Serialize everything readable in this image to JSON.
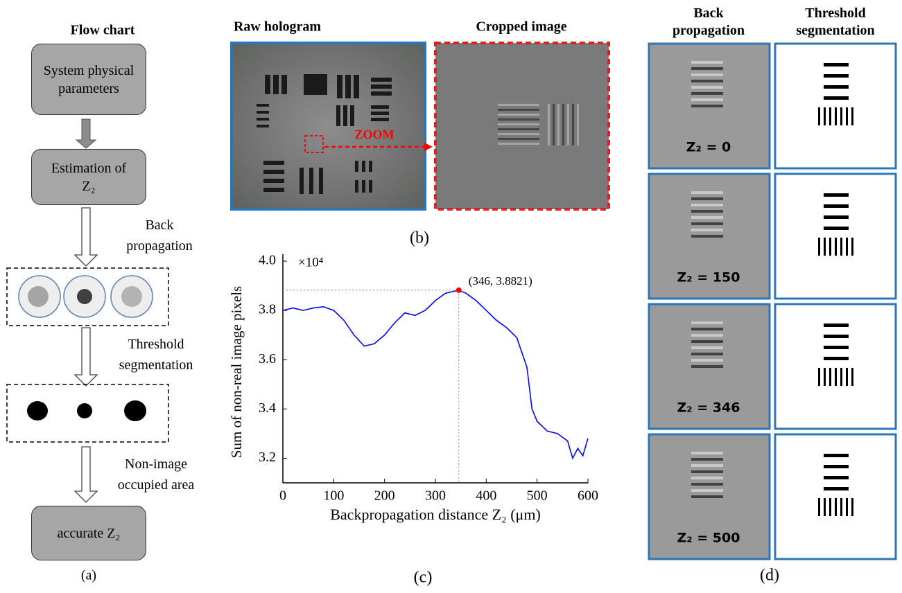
{
  "panel_a": {
    "title": "Flow chart",
    "boxes": [
      "System physical parameters",
      "Estimation of Z₂",
      "accurate Z₂"
    ],
    "steps": [
      "Back propagation",
      "Threshold segmentation",
      "Non-image occupied area"
    ]
  },
  "panel_b": {
    "titles": [
      "Raw hologram",
      "Cropped image"
    ],
    "zoom_label": "ZOOM"
  },
  "panel_d": {
    "columns": [
      "Back propagation",
      "Threshold segmentation"
    ],
    "rows": [
      "Z₂ = 0",
      "Z₂ = 150",
      "Z₂ = 346",
      "Z₂ = 500"
    ]
  },
  "panel_labels": [
    "(a)",
    "(b)",
    "(c)",
    "(d)"
  ],
  "chart_data": {
    "type": "line",
    "xlabel": "Backpropagation distance Z₂ (μm)",
    "ylabel": "Sum of non-real image pixels",
    "multiplier": "×10⁴",
    "color": "#0000ff",
    "x": [
      0,
      20,
      40,
      60,
      80,
      100,
      120,
      140,
      160,
      180,
      200,
      220,
      240,
      260,
      280,
      300,
      320,
      346,
      360,
      380,
      400,
      420,
      440,
      460,
      480,
      490,
      500,
      520,
      540,
      560,
      570,
      580,
      590,
      600
    ],
    "values": [
      3.8,
      3.81,
      3.8,
      3.81,
      3.815,
      3.8,
      3.76,
      3.7,
      3.655,
      3.665,
      3.7,
      3.75,
      3.79,
      3.78,
      3.8,
      3.84,
      3.87,
      3.8821,
      3.87,
      3.84,
      3.8,
      3.76,
      3.73,
      3.69,
      3.57,
      3.4,
      3.35,
      3.31,
      3.3,
      3.27,
      3.2,
      3.24,
      3.21,
      3.28
    ],
    "xlim": [
      0,
      600
    ],
    "xticks": [
      0,
      100,
      200,
      300,
      400,
      500,
      600
    ],
    "ylim": [
      3.1,
      4.0
    ],
    "yticks": [
      {
        "value": 3.2,
        "label": "3.2"
      },
      {
        "value": 3.4,
        "label": "3.4"
      },
      {
        "value": 3.6,
        "label": "3.6"
      },
      {
        "value": 3.8,
        "label": "3.8"
      },
      {
        "value": 4.0,
        "label": "4.0"
      }
    ],
    "highlight": {
      "x": 346,
      "y": 3.8821,
      "label": "(346, 3.8821)",
      "color": "#ff0000"
    }
  }
}
